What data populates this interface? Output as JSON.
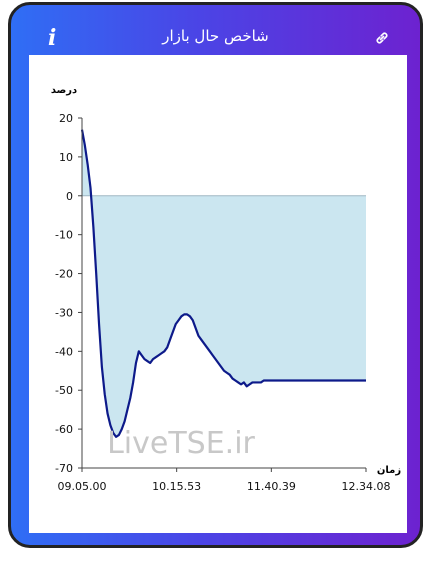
{
  "header": {
    "title": "شاخص حال بازار",
    "info_icon": "i",
    "link_icon": "link-icon"
  },
  "chart_data": {
    "type": "area",
    "ylabel": "درصد",
    "xlabel": "زمان",
    "ylim": [
      -70,
      20
    ],
    "yticks": [
      20,
      10,
      0,
      -10,
      -20,
      -30,
      -40,
      -50,
      -60,
      -70
    ],
    "xtick_labels": [
      "09.05.00",
      "10.15.53",
      "11.40.39",
      "12.34.08"
    ],
    "watermark": "LiveTSE.ir",
    "fill_color": "#cbe6f0",
    "line_color": "#0d1a8a",
    "series": [
      {
        "x": [
          0,
          0.01,
          0.02,
          0.03,
          0.04,
          0.05,
          0.06,
          0.07,
          0.08,
          0.09,
          0.1,
          0.11,
          0.12,
          0.13,
          0.14,
          0.15,
          0.16,
          0.17,
          0.18,
          0.19,
          0.2,
          0.21,
          0.22,
          0.23,
          0.24,
          0.25,
          0.26,
          0.27,
          0.28,
          0.29,
          0.3,
          0.31,
          0.32,
          0.33,
          0.34,
          0.35,
          0.36,
          0.37,
          0.38,
          0.39,
          0.4,
          0.41,
          0.42,
          0.43,
          0.44,
          0.45,
          0.46,
          0.47,
          0.48,
          0.49,
          0.5,
          0.51,
          0.52,
          0.53,
          0.54,
          0.55,
          0.56,
          0.57,
          0.58,
          0.59,
          0.6,
          0.61,
          0.62,
          0.63,
          0.64,
          0.65,
          0.66,
          0.67,
          0.68,
          0.69,
          0.7,
          0.71,
          0.72,
          0.73,
          0.74,
          0.75,
          0.76,
          0.77,
          0.78,
          0.79,
          0.8,
          0.81,
          0.82,
          0.83,
          0.84,
          0.85,
          0.86,
          0.87,
          0.88,
          0.89,
          0.9,
          0.91,
          0.92,
          0.93,
          0.94,
          0.95,
          0.96,
          0.97,
          0.98,
          0.99,
          1.0
        ],
        "y": [
          17,
          13,
          8,
          2,
          -8,
          -20,
          -33,
          -44,
          -51,
          -56,
          -59,
          -61,
          -62,
          -61.5,
          -60,
          -58,
          -55,
          -52,
          -48,
          -43,
          -40,
          -41,
          -42,
          -42.5,
          -43,
          -42,
          -41.5,
          -41,
          -40.5,
          -40,
          -39,
          -37,
          -35,
          -33,
          -32,
          -31,
          -30.5,
          -30.5,
          -31,
          -32,
          -34,
          -36,
          -37,
          -38,
          -39,
          -40,
          -41,
          -42,
          -43,
          -44,
          -45,
          -45.5,
          -46,
          -47,
          -47.5,
          -48,
          -48.5,
          -48,
          -49,
          -48.5,
          -48,
          -48,
          -48,
          -48,
          -47.5,
          -47.5,
          -47.5,
          -47.5,
          -47.5,
          -47.5,
          -47.5,
          -47.5,
          -47.5,
          -47.5,
          -47.5,
          -47.5,
          -47.5,
          -47.5,
          -47.5,
          -47.5,
          -47.5,
          -47.5,
          -47.5,
          -47.5,
          -47.5,
          -47.5,
          -47.5,
          -47.5,
          -47.5,
          -47.5,
          -47.5,
          -47.5,
          -47.5,
          -47.5,
          -47.5,
          -47.5,
          -47.5,
          -47.5,
          -47.5,
          -47.5,
          -47.5
        ]
      }
    ]
  }
}
